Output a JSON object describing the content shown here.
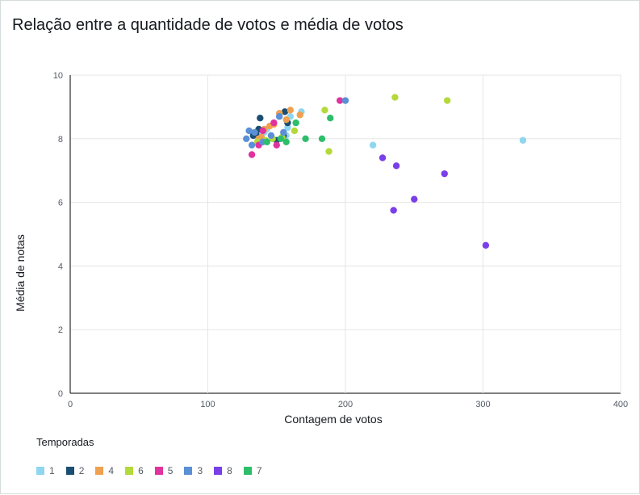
{
  "title": "Relação entre a quantidade de votos e média de votos",
  "legend_title": "Temporadas",
  "chart_data": {
    "type": "scatter",
    "title": "Relação entre a quantidade de votos e média de votos",
    "xlabel": "Contagem de votos",
    "ylabel": "Média de notas",
    "xlim": [
      0,
      400
    ],
    "ylim": [
      0,
      10
    ],
    "xticks": [
      0,
      100,
      200,
      300,
      400
    ],
    "yticks": [
      0,
      2,
      4,
      6,
      8,
      10
    ],
    "grid": true,
    "legend_position": "bottom-left",
    "series": [
      {
        "name": "1",
        "color": "#8fd6f0",
        "points": [
          [
            134,
            8.1
          ],
          [
            136,
            8.2
          ],
          [
            138,
            8.0
          ],
          [
            141,
            8.2
          ],
          [
            143,
            8.3
          ],
          [
            157,
            8.1
          ],
          [
            158,
            8.35
          ],
          [
            160,
            8.7
          ],
          [
            168,
            8.85
          ],
          [
            220,
            7.8
          ],
          [
            329,
            7.95
          ]
        ]
      },
      {
        "name": "2",
        "color": "#1b4f72",
        "points": [
          [
            133,
            8.1
          ],
          [
            135,
            8.15
          ],
          [
            137,
            8.3
          ],
          [
            138,
            8.65
          ],
          [
            150,
            7.95
          ],
          [
            155,
            8.1
          ],
          [
            156,
            8.85
          ],
          [
            158,
            8.5
          ]
        ]
      },
      {
        "name": "4",
        "color": "#f0a150",
        "points": [
          [
            137,
            8.0
          ],
          [
            139,
            8.05
          ],
          [
            141,
            8.3
          ],
          [
            145,
            8.4
          ],
          [
            148,
            8.45
          ],
          [
            152,
            8.8
          ],
          [
            157,
            8.6
          ],
          [
            160,
            8.9
          ],
          [
            167,
            8.75
          ]
        ]
      },
      {
        "name": "6",
        "color": "#b4d93a",
        "points": [
          [
            136,
            7.9
          ],
          [
            142,
            7.95
          ],
          [
            147,
            8.0
          ],
          [
            154,
            8.05
          ],
          [
            163,
            8.25
          ],
          [
            185,
            8.9
          ],
          [
            188,
            7.6
          ],
          [
            236,
            9.3
          ],
          [
            274,
            9.2
          ]
        ]
      },
      {
        "name": "5",
        "color": "#e0339e",
        "points": [
          [
            132,
            7.5
          ],
          [
            137,
            7.8
          ],
          [
            140,
            8.25
          ],
          [
            148,
            8.5
          ],
          [
            150,
            7.8
          ],
          [
            196,
            9.2
          ]
        ]
      },
      {
        "name": "3",
        "color": "#5b8fd6",
        "points": [
          [
            128,
            8.0
          ],
          [
            130,
            8.25
          ],
          [
            132,
            7.8
          ],
          [
            134,
            8.2
          ],
          [
            140,
            7.9
          ],
          [
            146,
            8.1
          ],
          [
            152,
            8.7
          ],
          [
            155,
            8.2
          ],
          [
            200,
            9.2
          ]
        ]
      },
      {
        "name": "8",
        "color": "#7a3fe8",
        "points": [
          [
            227,
            7.4
          ],
          [
            235,
            5.75
          ],
          [
            237,
            7.15
          ],
          [
            250,
            6.1
          ],
          [
            272,
            6.9
          ],
          [
            302,
            4.65
          ]
        ]
      },
      {
        "name": "7",
        "color": "#2ebe6b",
        "points": [
          [
            143,
            7.9
          ],
          [
            153,
            8.0
          ],
          [
            157,
            7.9
          ],
          [
            164,
            8.5
          ],
          [
            171,
            8.0
          ],
          [
            183,
            8.0
          ],
          [
            189,
            8.65
          ]
        ]
      }
    ]
  }
}
